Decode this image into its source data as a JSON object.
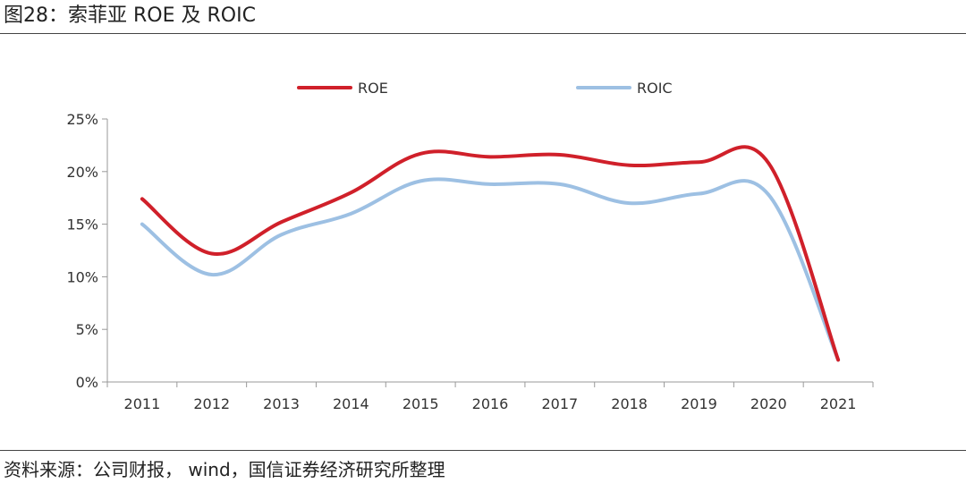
{
  "figure": {
    "title": "图28：索菲亚 ROE 及 ROIC",
    "source": "资料来源：公司财报， wind，国信证券经济研究所整理"
  },
  "chart_data": {
    "type": "line",
    "categories": [
      "2011",
      "2012",
      "2013",
      "2014",
      "2015",
      "2016",
      "2017",
      "2018",
      "2019",
      "2020",
      "2021"
    ],
    "series": [
      {
        "name": "ROE",
        "color": "#d0202a",
        "values": [
          17.4,
          12.2,
          15.2,
          18.0,
          21.7,
          21.4,
          21.6,
          20.6,
          20.9,
          20.8,
          2.1
        ]
      },
      {
        "name": "ROIC",
        "color": "#9dc0e3",
        "values": [
          15.0,
          10.2,
          14.0,
          16.0,
          19.1,
          18.8,
          18.8,
          17.0,
          17.9,
          17.8,
          2.1
        ]
      }
    ],
    "y_ticks": [
      "0%",
      "5%",
      "10%",
      "15%",
      "20%",
      "25%"
    ],
    "ylim": [
      0,
      25
    ],
    "legend_position": "top",
    "grid": false
  }
}
